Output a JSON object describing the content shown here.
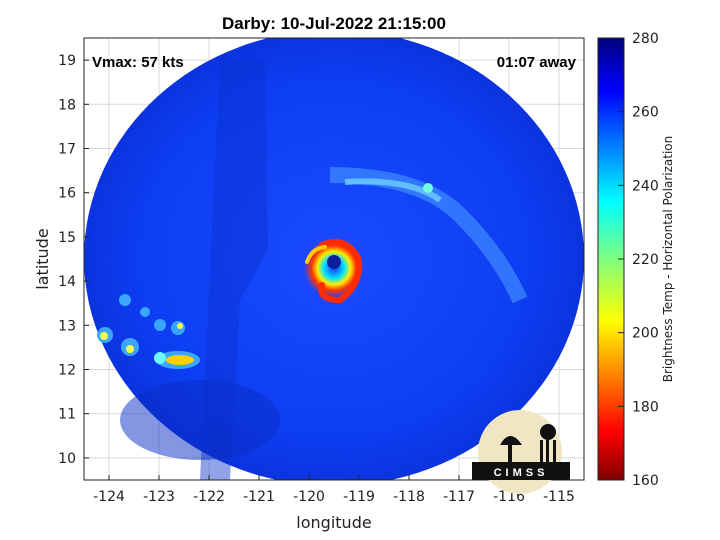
{
  "title": "Darby: 10-Jul-2022 21:15:00",
  "annotations": {
    "vmax": "Vmax: 57 kts",
    "time_offset": "01:07 away"
  },
  "axes": {
    "xlabel": "longitude",
    "ylabel": "latitude",
    "xlim": [
      -124.5,
      -114.5
    ],
    "ylim": [
      9.5,
      19.5
    ],
    "x_ticks": [
      "-124",
      "-123",
      "-122",
      "-121",
      "-120",
      "-119",
      "-118",
      "-117",
      "-116",
      "-115"
    ],
    "y_ticks": [
      "10",
      "11",
      "12",
      "13",
      "14",
      "15",
      "16",
      "17",
      "18",
      "19"
    ],
    "grid": true
  },
  "colorbar": {
    "label": "Brightness Temp - Horizontal Polarization",
    "min": 160,
    "max": 280,
    "ticks": [
      "280",
      "260",
      "240",
      "220",
      "200",
      "180",
      "160"
    ],
    "colormap": "jet"
  },
  "storm": {
    "name": "Darby",
    "center_lon": -119.3,
    "center_lat": 14.3
  },
  "logo": {
    "text": "CIMSS"
  }
}
